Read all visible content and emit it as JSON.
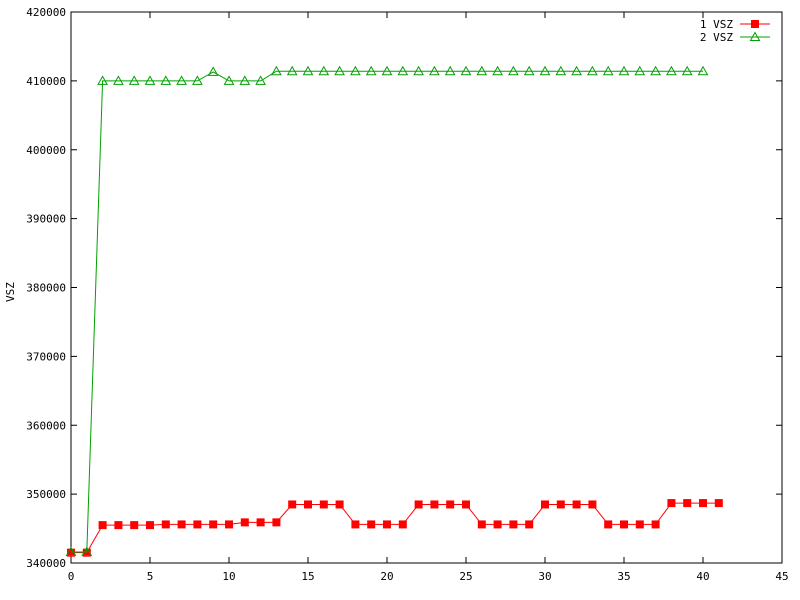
{
  "chart_data": {
    "type": "line",
    "title": "",
    "xlabel": "",
    "ylabel": "VSZ",
    "xlim": [
      0,
      45
    ],
    "ylim": [
      340000,
      420000
    ],
    "xticks": [
      0,
      5,
      10,
      15,
      20,
      25,
      30,
      35,
      40,
      45
    ],
    "yticks": [
      340000,
      350000,
      360000,
      370000,
      380000,
      390000,
      400000,
      410000,
      420000
    ],
    "grid": false,
    "legend_position": "top-right",
    "series": [
      {
        "name": "1 VSZ",
        "color": "#ff0000",
        "marker": "filled-square",
        "x": [
          0,
          1,
          2,
          3,
          4,
          5,
          6,
          7,
          8,
          9,
          10,
          11,
          12,
          13,
          14,
          15,
          16,
          17,
          18,
          19,
          20,
          21,
          22,
          23,
          24,
          25,
          26,
          27,
          28,
          29,
          30,
          31,
          32,
          33,
          34,
          35,
          36,
          37,
          38,
          39,
          40,
          41
        ],
        "y": [
          341500,
          341500,
          345500,
          345500,
          345500,
          345500,
          345600,
          345600,
          345600,
          345600,
          345600,
          345900,
          345900,
          345900,
          348500,
          348500,
          348500,
          348500,
          345600,
          345600,
          345600,
          345600,
          348500,
          348500,
          348500,
          348500,
          345600,
          345600,
          345600,
          345600,
          348500,
          348500,
          348500,
          348500,
          345600,
          345600,
          345600,
          345600,
          348700,
          348700,
          348700,
          348700
        ]
      },
      {
        "name": "2 VSZ",
        "color": "#00a000",
        "marker": "open-triangle",
        "x": [
          0,
          1,
          2,
          3,
          4,
          5,
          6,
          7,
          8,
          9,
          10,
          11,
          12,
          13,
          14,
          15,
          16,
          17,
          18,
          19,
          20,
          21,
          22,
          23,
          24,
          25,
          26,
          27,
          28,
          29,
          30,
          31,
          32,
          33,
          34,
          35,
          36,
          37,
          38,
          39,
          40
        ],
        "y": [
          341600,
          341600,
          410000,
          410000,
          410000,
          410000,
          410000,
          410000,
          410000,
          411300,
          410000,
          410000,
          410000,
          411400,
          411400,
          411400,
          411400,
          411400,
          411400,
          411400,
          411400,
          411400,
          411400,
          411400,
          411400,
          411400,
          411400,
          411400,
          411400,
          411400,
          411400,
          411400,
          411400,
          411400,
          411400,
          411400,
          411400,
          411400,
          411400,
          411400,
          411400
        ]
      }
    ]
  }
}
